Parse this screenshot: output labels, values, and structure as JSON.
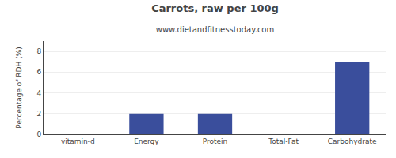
{
  "chart_data": {
    "type": "bar",
    "title": "Carrots, raw per 100g",
    "subtitle": "www.dietandfitnesstoday.com",
    "categories": [
      "vitamin-d",
      "Energy",
      "Protein",
      "Total-Fat",
      "Carbohydrate"
    ],
    "values": [
      0,
      2,
      2,
      0,
      7
    ],
    "color": "#3a4e9c",
    "ylabel": "Percentage of RDH (%)",
    "ylim": [
      0,
      9
    ],
    "yticks": [
      0,
      2,
      4,
      6,
      8
    ],
    "grid": true
  }
}
